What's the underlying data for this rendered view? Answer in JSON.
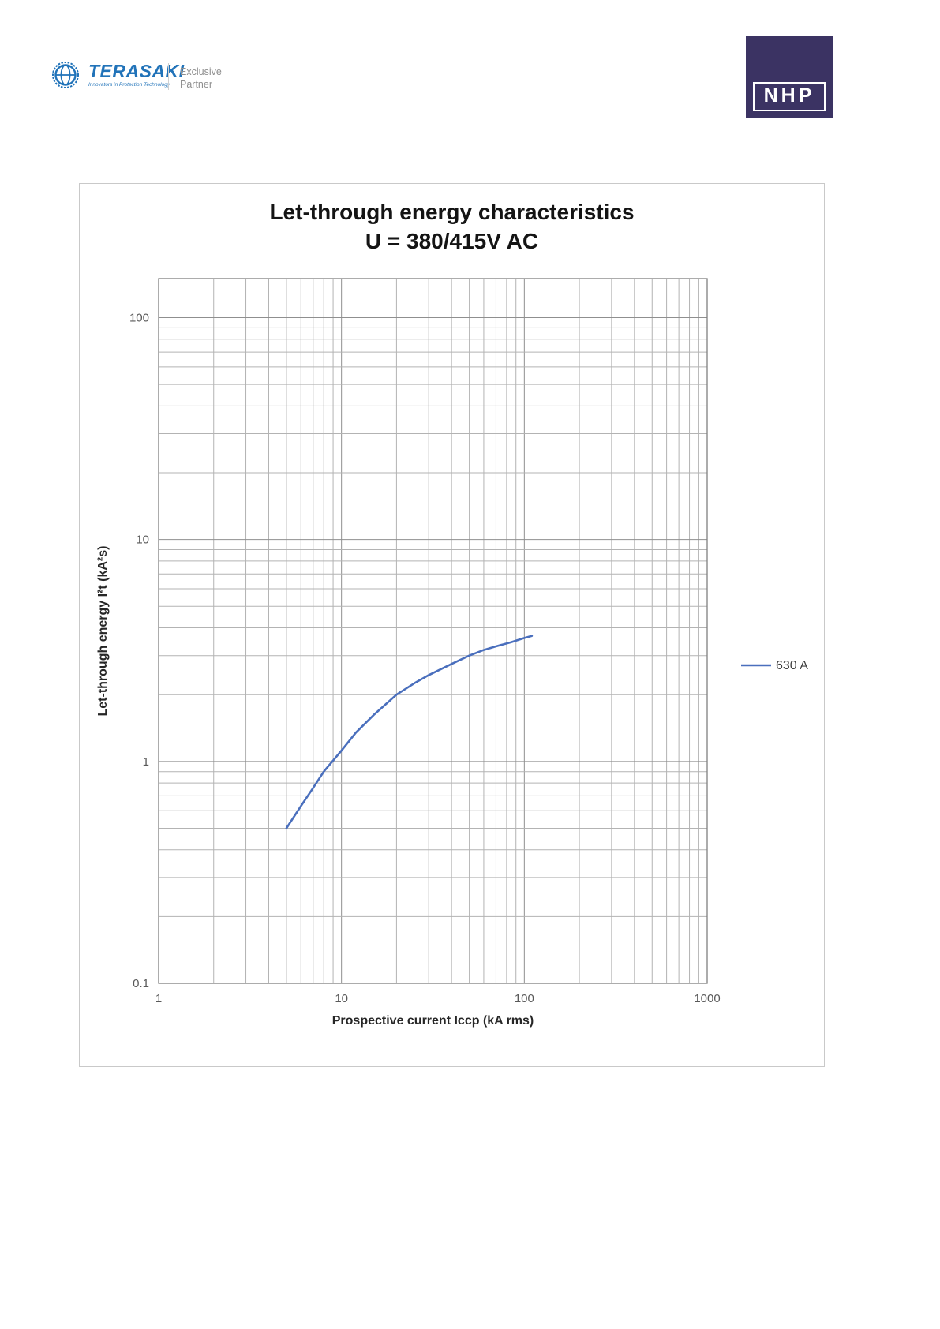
{
  "header": {
    "terasaki": {
      "brand": "TERASAKI",
      "tagline": "Innovators in Protection Technology",
      "brand_color": "#2173b9"
    },
    "partner": {
      "line1": "Exclusive",
      "line2": "Partner"
    },
    "nhp": {
      "label": "NHP",
      "bg_color": "#3b3363"
    }
  },
  "chart_data": {
    "type": "line",
    "title": "Let-through energy characteristics",
    "subtitle": "U = 380/415V AC",
    "xlabel": "Prospective current Iccp (kA rms)",
    "ylabel": "Let-through energy I²t (kA²s)",
    "x_scale": "log",
    "y_scale": "log",
    "xlim": [
      1,
      1000
    ],
    "ylim": [
      0.1,
      150
    ],
    "x_ticks": [
      1,
      10,
      100,
      1000
    ],
    "y_ticks": [
      0.1,
      1,
      10,
      100
    ],
    "grid": "log major and minor gridlines, both axes",
    "legend_position": "right-outside",
    "colors": {
      "grid_minor": "#b3b3b3",
      "grid_major": "#8f8f8f",
      "axis": "#7f7f7f",
      "series": "#4a6fbd"
    },
    "series": [
      {
        "name": "630 A",
        "color": "#4a6fbd",
        "x": [
          5,
          6,
          7,
          8,
          9,
          10,
          12,
          15,
          20,
          25,
          30,
          40,
          50,
          60,
          70,
          85,
          100,
          110
        ],
        "y": [
          0.5,
          0.63,
          0.76,
          0.9,
          1.01,
          1.12,
          1.35,
          1.62,
          2.0,
          2.25,
          2.45,
          2.75,
          3.0,
          3.18,
          3.3,
          3.45,
          3.6,
          3.68
        ]
      }
    ]
  }
}
